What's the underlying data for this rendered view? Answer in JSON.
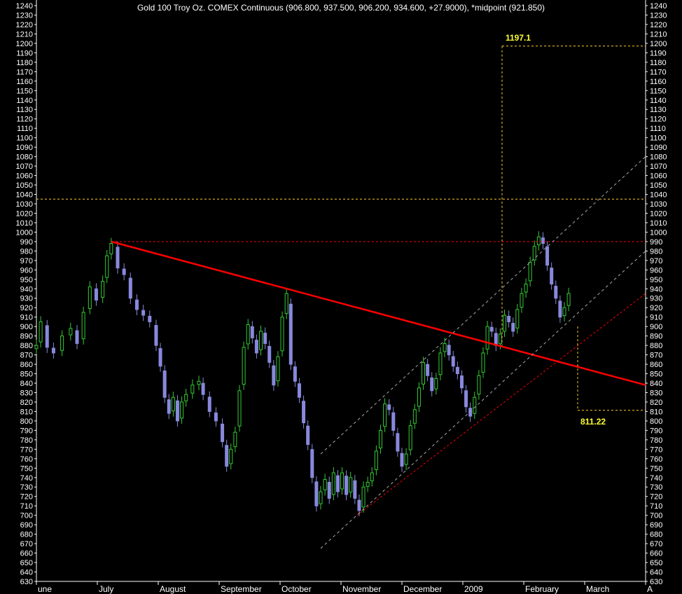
{
  "chart_data": {
    "type": "candlestick",
    "title": "Gold 100 Troy Oz. COMEX Continuous (906.800, 937.500, 906.200, 934.600, +27.9000), *midpoint (921.850)",
    "ylim": [
      630,
      1240
    ],
    "ytick_step": 10,
    "x_months": [
      "une",
      "July",
      "August",
      "September",
      "October",
      "November",
      "December",
      "2009",
      "February",
      "March",
      "A"
    ],
    "xlim_days": [
      0,
      285
    ],
    "colors": {
      "up": "#33cc33",
      "down": "#8888dd",
      "trendline": "#ff0000",
      "guide": "#ffcc33",
      "channel": "#aaaaaa"
    },
    "series_close": [
      {
        "d": 0,
        "v": 880
      },
      {
        "d": 2,
        "v": 905
      },
      {
        "d": 5,
        "v": 878
      },
      {
        "d": 8,
        "v": 872
      },
      {
        "d": 12,
        "v": 890
      },
      {
        "d": 16,
        "v": 898
      },
      {
        "d": 19,
        "v": 882
      },
      {
        "d": 22,
        "v": 915
      },
      {
        "d": 25,
        "v": 942
      },
      {
        "d": 28,
        "v": 928
      },
      {
        "d": 31,
        "v": 948
      },
      {
        "d": 33,
        "v": 975
      },
      {
        "d": 35,
        "v": 988
      },
      {
        "d": 38,
        "v": 962
      },
      {
        "d": 41,
        "v": 955
      },
      {
        "d": 44,
        "v": 930
      },
      {
        "d": 47,
        "v": 918
      },
      {
        "d": 50,
        "v": 912
      },
      {
        "d": 53,
        "v": 905
      },
      {
        "d": 56,
        "v": 880
      },
      {
        "d": 58,
        "v": 858
      },
      {
        "d": 60,
        "v": 825
      },
      {
        "d": 62,
        "v": 808
      },
      {
        "d": 64,
        "v": 825
      },
      {
        "d": 66,
        "v": 800
      },
      {
        "d": 68,
        "v": 820
      },
      {
        "d": 70,
        "v": 828
      },
      {
        "d": 73,
        "v": 838
      },
      {
        "d": 76,
        "v": 842
      },
      {
        "d": 78,
        "v": 828
      },
      {
        "d": 81,
        "v": 810
      },
      {
        "d": 84,
        "v": 800
      },
      {
        "d": 87,
        "v": 778
      },
      {
        "d": 89,
        "v": 752
      },
      {
        "d": 91,
        "v": 770
      },
      {
        "d": 93,
        "v": 788
      },
      {
        "d": 95,
        "v": 832
      },
      {
        "d": 97,
        "v": 878
      },
      {
        "d": 99,
        "v": 902
      },
      {
        "d": 101,
        "v": 888
      },
      {
        "d": 103,
        "v": 872
      },
      {
        "d": 105,
        "v": 895
      },
      {
        "d": 107,
        "v": 882
      },
      {
        "d": 109,
        "v": 862
      },
      {
        "d": 111,
        "v": 838
      },
      {
        "d": 113,
        "v": 868
      },
      {
        "d": 115,
        "v": 910
      },
      {
        "d": 117,
        "v": 935
      },
      {
        "d": 119,
        "v": 860
      },
      {
        "d": 121,
        "v": 842
      },
      {
        "d": 123,
        "v": 825
      },
      {
        "d": 125,
        "v": 798
      },
      {
        "d": 127,
        "v": 775
      },
      {
        "d": 129,
        "v": 740
      },
      {
        "d": 131,
        "v": 710
      },
      {
        "d": 133,
        "v": 725
      },
      {
        "d": 135,
        "v": 738
      },
      {
        "d": 137,
        "v": 718
      },
      {
        "d": 139,
        "v": 745
      },
      {
        "d": 141,
        "v": 725
      },
      {
        "d": 143,
        "v": 745
      },
      {
        "d": 145,
        "v": 722
      },
      {
        "d": 147,
        "v": 740
      },
      {
        "d": 149,
        "v": 718
      },
      {
        "d": 151,
        "v": 705
      },
      {
        "d": 153,
        "v": 730
      },
      {
        "d": 155,
        "v": 735
      },
      {
        "d": 157,
        "v": 745
      },
      {
        "d": 159,
        "v": 768
      },
      {
        "d": 161,
        "v": 790
      },
      {
        "d": 163,
        "v": 818
      },
      {
        "d": 165,
        "v": 812
      },
      {
        "d": 167,
        "v": 790
      },
      {
        "d": 169,
        "v": 768
      },
      {
        "d": 171,
        "v": 752
      },
      {
        "d": 173,
        "v": 765
      },
      {
        "d": 175,
        "v": 795
      },
      {
        "d": 177,
        "v": 812
      },
      {
        "d": 179,
        "v": 835
      },
      {
        "d": 181,
        "v": 862
      },
      {
        "d": 183,
        "v": 848
      },
      {
        "d": 185,
        "v": 832
      },
      {
        "d": 187,
        "v": 845
      },
      {
        "d": 189,
        "v": 872
      },
      {
        "d": 191,
        "v": 882
      },
      {
        "d": 193,
        "v": 870
      },
      {
        "d": 195,
        "v": 858
      },
      {
        "d": 197,
        "v": 850
      },
      {
        "d": 199,
        "v": 835
      },
      {
        "d": 201,
        "v": 815
      },
      {
        "d": 203,
        "v": 805
      },
      {
        "d": 205,
        "v": 825
      },
      {
        "d": 207,
        "v": 848
      },
      {
        "d": 209,
        "v": 872
      },
      {
        "d": 211,
        "v": 900
      },
      {
        "d": 213,
        "v": 895
      },
      {
        "d": 215,
        "v": 880
      },
      {
        "d": 217,
        "v": 892
      },
      {
        "d": 219,
        "v": 912
      },
      {
        "d": 221,
        "v": 905
      },
      {
        "d": 223,
        "v": 895
      },
      {
        "d": 225,
        "v": 918
      },
      {
        "d": 227,
        "v": 935
      },
      {
        "d": 229,
        "v": 945
      },
      {
        "d": 231,
        "v": 968
      },
      {
        "d": 233,
        "v": 985
      },
      {
        "d": 235,
        "v": 995
      },
      {
        "d": 237,
        "v": 988
      },
      {
        "d": 239,
        "v": 965
      },
      {
        "d": 241,
        "v": 945
      },
      {
        "d": 243,
        "v": 930
      },
      {
        "d": 245,
        "v": 910
      },
      {
        "d": 247,
        "v": 920
      },
      {
        "d": 249,
        "v": 935
      }
    ],
    "annotations": [
      {
        "text": "1197.1",
        "value": 1197.1
      },
      {
        "text": "811.22",
        "value": 811.22
      }
    ],
    "lines": [
      {
        "name": "trendline",
        "from": {
          "d": 35,
          "v": 990
        },
        "to": {
          "d": 285,
          "v": 838
        }
      },
      {
        "name": "resistance",
        "from": {
          "d": 35,
          "v": 990
        },
        "to": {
          "d": 285,
          "v": 990
        }
      },
      {
        "name": "target-level",
        "from": {
          "d": 0,
          "v": 1035
        },
        "to": {
          "d": 285,
          "v": 1035
        }
      },
      {
        "name": "channel-upper",
        "from": {
          "d": 133,
          "v": 765
        },
        "to": {
          "d": 285,
          "v": 1080
        }
      },
      {
        "name": "channel-mid",
        "from": {
          "d": 133,
          "v": 665
        },
        "to": {
          "d": 285,
          "v": 980
        }
      },
      {
        "name": "channel-lower-dashed",
        "from": {
          "d": 150,
          "v": 700
        },
        "to": {
          "d": 285,
          "v": 935
        }
      }
    ]
  }
}
